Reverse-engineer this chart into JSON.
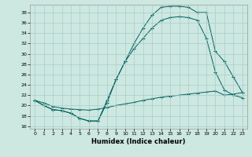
{
  "title": "",
  "xlabel": "Humidex (Indice chaleur)",
  "bg_color": "#cce8e0",
  "grid_color": "#aacccc",
  "line_color": "#006060",
  "xlim": [
    -0.5,
    23.5
  ],
  "ylim": [
    15.5,
    39.5
  ],
  "yticks": [
    16,
    18,
    20,
    22,
    24,
    26,
    28,
    30,
    32,
    34,
    36,
    38
  ],
  "xticks": [
    0,
    1,
    2,
    3,
    4,
    5,
    6,
    7,
    8,
    9,
    10,
    11,
    12,
    13,
    14,
    15,
    16,
    17,
    18,
    19,
    20,
    21,
    22,
    23
  ],
  "line1_x": [
    0,
    1,
    2,
    3,
    4,
    5,
    6,
    7,
    8,
    9,
    10,
    11,
    12,
    13,
    14,
    15,
    16,
    17,
    18,
    19,
    20,
    21,
    22,
    23
  ],
  "line1_y": [
    21,
    20,
    19.2,
    19,
    18.5,
    17.5,
    17,
    17,
    20.5,
    25,
    28.5,
    32,
    35,
    37.5,
    39,
    39.2,
    39.2,
    39,
    38,
    38,
    30.5,
    28.5,
    25.5,
    22.5
  ],
  "line2_x": [
    0,
    1,
    2,
    3,
    4,
    5,
    6,
    7,
    8,
    9,
    10,
    11,
    12,
    13,
    14,
    15,
    16,
    17,
    18,
    19,
    20,
    21,
    22,
    23
  ],
  "line2_y": [
    21,
    20,
    19.2,
    19,
    18.5,
    17.5,
    17,
    17,
    21,
    25,
    28.5,
    31,
    33,
    35,
    36.5,
    37,
    37.2,
    37,
    36.5,
    33,
    26.5,
    23,
    22,
    21.5
  ],
  "line3_x": [
    0,
    1,
    2,
    3,
    4,
    5,
    6,
    7,
    8,
    9,
    10,
    11,
    12,
    13,
    14,
    15,
    16,
    17,
    18,
    19,
    20,
    21,
    22,
    23
  ],
  "line3_y": [
    21,
    20.5,
    19.8,
    19.5,
    19.3,
    19.2,
    19.1,
    19.3,
    19.6,
    20.0,
    20.3,
    20.6,
    21.0,
    21.3,
    21.6,
    21.8,
    22.0,
    22.2,
    22.4,
    22.6,
    22.8,
    22.0,
    22.2,
    22.5
  ]
}
